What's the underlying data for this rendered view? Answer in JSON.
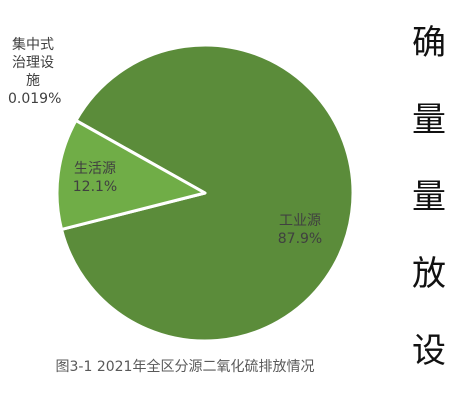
{
  "chart_data": {
    "type": "pie",
    "caption": "图3-1 2021年全区分源二氧化硫排放情况",
    "categories": [
      "集中式治理设施",
      "工业源",
      "生活源"
    ],
    "values": [
      0.019,
      87.9,
      12.1
    ],
    "value_labels": [
      "0.019%",
      "87.9%",
      "12.1%"
    ],
    "colors": [
      "#5b8c3a",
      "#5b8c3a",
      "#70ad47"
    ]
  },
  "side_text": [
    "确",
    "量",
    "量",
    "放",
    "设"
  ]
}
